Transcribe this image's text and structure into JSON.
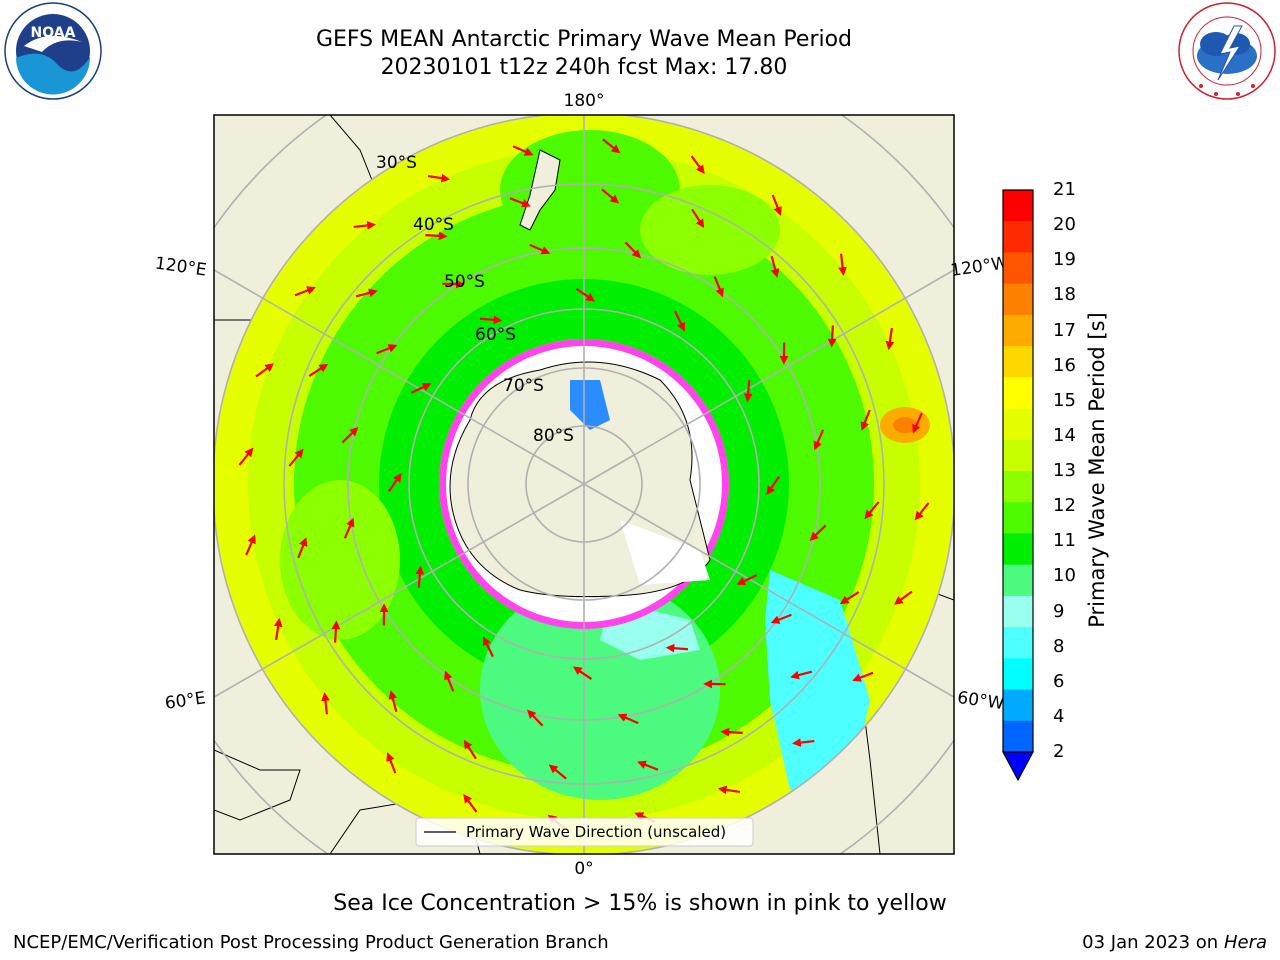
{
  "title": {
    "line1": "GEFS MEAN Antarctic Primary Wave Mean Period",
    "line2": "20230101 t12z 240h fcst   Max: 17.80"
  },
  "subtitle": "Sea Ice Concentration > 15% is shown in pink to yellow",
  "footer": {
    "left": "NCEP/EMC/Verification Post Processing Product Generation Branch",
    "right_date": "03 Jan 2023 on",
    "right_machine": "Hera"
  },
  "map": {
    "projection": "south-polar-stereographic",
    "lon_labels": {
      "top": "180°",
      "bottom": "0°",
      "upper_left": "120°E",
      "upper_right": "120°W",
      "lower_left": "60°E",
      "lower_right": "60°W"
    },
    "lat_labels": [
      "30°S",
      "40°S",
      "50°S",
      "60°S",
      "70°S",
      "80°S"
    ],
    "legend_label": "Primary Wave Direction (unscaled)",
    "max_value": 17.8
  },
  "colorbar": {
    "title": "Primary Wave Mean Period [s]",
    "ticks": [
      "21",
      "20",
      "19",
      "18",
      "17",
      "16",
      "15",
      "14",
      "13",
      "12",
      "11",
      "10",
      "9",
      "8",
      "6",
      "4",
      "2"
    ],
    "colors": [
      "#fe0000",
      "#fe2a00",
      "#fe5600",
      "#fe8000",
      "#feab00",
      "#fed600",
      "#ffff00",
      "#e6ff00",
      "#c8ff00",
      "#8cff00",
      "#4dfa00",
      "#00ee00",
      "#4dfa80",
      "#99ffee",
      "#4dffff",
      "#00ffff",
      "#00aaff",
      "#0066ff"
    ]
  },
  "logos": {
    "left": {
      "text": "NOAA",
      "ring_text": "NATIONAL OCEANIC AND ATMOSPHERIC ADMINISTRATION · U.S. DEPARTMENT OF COMMERCE"
    },
    "right": {
      "ring_text": "NATIONAL WEATHER SERVICE"
    }
  }
}
